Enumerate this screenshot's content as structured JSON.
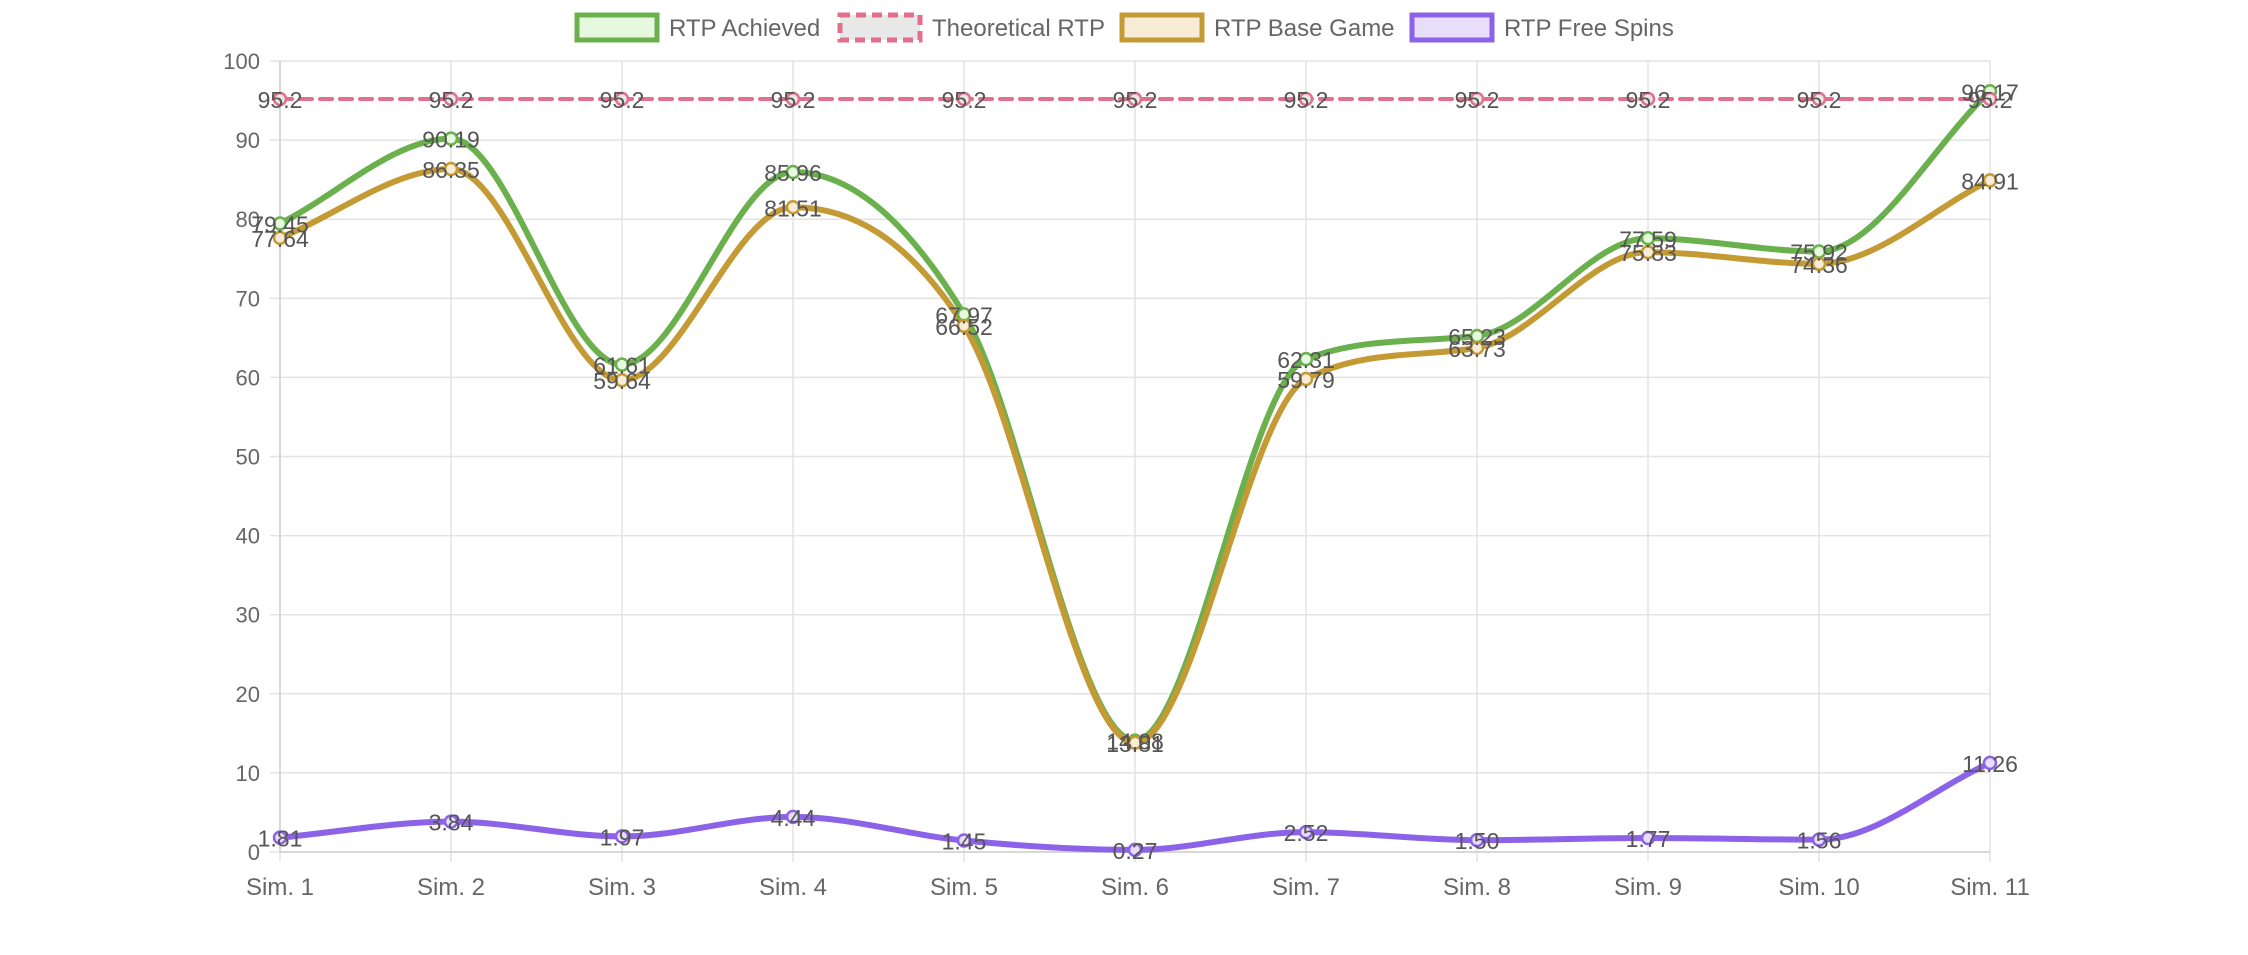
{
  "chart_data": {
    "type": "line",
    "categories": [
      "Sim. 1",
      "Sim. 2",
      "Sim. 3",
      "Sim. 4",
      "Sim. 5",
      "Sim. 6",
      "Sim. 7",
      "Sim. 8",
      "Sim. 9",
      "Sim. 10",
      "Sim. 11"
    ],
    "series": [
      {
        "name": "RTP Achieved",
        "color": "#6ab04c",
        "fill": "#e6f8de",
        "dashed": false,
        "values": [
          79.45,
          90.19,
          61.61,
          85.96,
          67.97,
          14.08,
          62.31,
          65.23,
          77.59,
          75.92,
          96.17
        ],
        "labels": [
          "79.45",
          "90.19",
          "61.61",
          "85.96",
          "67.97",
          "14.08",
          "62.31",
          "65.23",
          "77.59",
          "75.92",
          "96.17"
        ]
      },
      {
        "name": "Theoretical RTP",
        "color": "#e0708c",
        "fill": "#e8e8e8",
        "dashed": true,
        "values": [
          95.2,
          95.2,
          95.2,
          95.2,
          95.2,
          95.2,
          95.2,
          95.2,
          95.2,
          95.2,
          95.2
        ],
        "labels": [
          "95.2",
          "95.2",
          "95.2",
          "95.2",
          "95.2",
          "95.2",
          "95.2",
          "95.2",
          "95.2",
          "95.2",
          "95.2"
        ]
      },
      {
        "name": "RTP Base Game",
        "color": "#c49a35",
        "fill": "#f8ecd6",
        "dashed": false,
        "values": [
          77.64,
          86.35,
          59.64,
          81.51,
          66.52,
          13.81,
          59.79,
          63.73,
          75.83,
          74.36,
          84.91
        ],
        "labels": [
          "77.64",
          "86.35",
          "59.64",
          "81.51",
          "66.52",
          "13.81",
          "59.79",
          "63.73",
          "75.83",
          "74.36",
          "84.91"
        ]
      },
      {
        "name": "RTP Free Spins",
        "color": "#8c63e8",
        "fill": "#e8defa",
        "dashed": false,
        "values": [
          1.81,
          3.84,
          1.97,
          4.44,
          1.45,
          0.27,
          2.52,
          1.5,
          1.77,
          1.56,
          11.26
        ],
        "labels": [
          "1.81",
          "3.84",
          "1.97",
          "4.44",
          "1.45",
          "0.27",
          "2.52",
          "1.50",
          "1.77",
          "1.56",
          "11.26"
        ]
      }
    ],
    "y_ticks": [
      "0",
      "10",
      "20",
      "30",
      "40",
      "50",
      "60",
      "70",
      "80",
      "90",
      "100"
    ],
    "ylim": [
      0,
      100
    ],
    "grid": true,
    "legend_position": "top-center",
    "title": "",
    "xlabel": "",
    "ylabel": ""
  }
}
